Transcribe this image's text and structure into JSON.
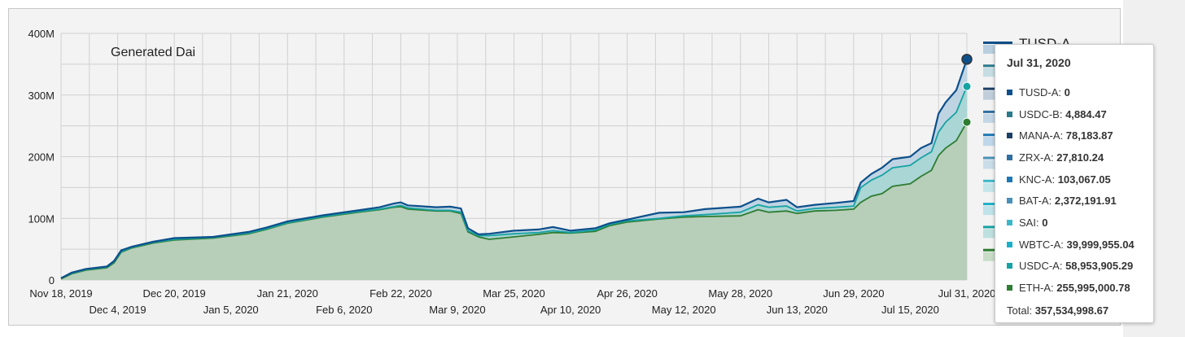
{
  "chart_data": {
    "type": "area",
    "title": "Generated Dai",
    "xlabel": "",
    "ylabel": "",
    "ylim": [
      0,
      400000000
    ],
    "y_ticks": [
      {
        "value": 0,
        "label": "0"
      },
      {
        "value": 100000000,
        "label": "100M"
      },
      {
        "value": 200000000,
        "label": "200M"
      },
      {
        "value": 300000000,
        "label": "300M"
      },
      {
        "value": 400000000,
        "label": "400M"
      }
    ],
    "x_ticks_upper": [
      {
        "date": "2019-11-18",
        "label": "Nov 18, 2019"
      },
      {
        "date": "2019-12-20",
        "label": "Dec 20, 2019"
      },
      {
        "date": "2020-01-21",
        "label": "Jan 21, 2020"
      },
      {
        "date": "2020-02-22",
        "label": "Feb 22, 2020"
      },
      {
        "date": "2020-03-25",
        "label": "Mar 25, 2020"
      },
      {
        "date": "2020-04-26",
        "label": "Apr 26, 2020"
      },
      {
        "date": "2020-05-28",
        "label": "May 28, 2020"
      },
      {
        "date": "2020-06-29",
        "label": "Jun 29, 2020"
      },
      {
        "date": "2020-07-31",
        "label": "Jul 31, 2020"
      }
    ],
    "x_ticks_lower": [
      {
        "date": "2019-12-04",
        "label": "Dec 4, 2019"
      },
      {
        "date": "2020-01-05",
        "label": "Jan 5, 2020"
      },
      {
        "date": "2020-02-06",
        "label": "Feb 6, 2020"
      },
      {
        "date": "2020-03-09",
        "label": "Mar 9, 2020"
      },
      {
        "date": "2020-04-10",
        "label": "Apr 10, 2020"
      },
      {
        "date": "2020-05-12",
        "label": "May 12, 2020"
      },
      {
        "date": "2020-06-13",
        "label": "Jun 13, 2020"
      },
      {
        "date": "2020-07-15",
        "label": "Jul 15, 2020"
      }
    ],
    "grid": true,
    "legend_position": "right",
    "legend_visible_entry": "TUSD-A",
    "series": [
      {
        "name": "ETH-A",
        "color": "#2e7d32",
        "points": [
          [
            "2019-11-18",
            2
          ],
          [
            "2019-11-21",
            10
          ],
          [
            "2019-11-25",
            16
          ],
          [
            "2019-12-01",
            20
          ],
          [
            "2019-12-03",
            28
          ],
          [
            "2019-12-05",
            45
          ],
          [
            "2019-12-08",
            52
          ],
          [
            "2019-12-14",
            60
          ],
          [
            "2019-12-20",
            65
          ],
          [
            "2019-12-31",
            68
          ],
          [
            "2020-01-10",
            75
          ],
          [
            "2020-01-15",
            82
          ],
          [
            "2020-01-21",
            92
          ],
          [
            "2020-01-31",
            102
          ],
          [
            "2020-02-10",
            110
          ],
          [
            "2020-02-16",
            114
          ],
          [
            "2020-02-20",
            118
          ],
          [
            "2020-02-22",
            119
          ],
          [
            "2020-02-24",
            115
          ],
          [
            "2020-03-03",
            112
          ],
          [
            "2020-03-07",
            112
          ],
          [
            "2020-03-10",
            108
          ],
          [
            "2020-03-12",
            78
          ],
          [
            "2020-03-15",
            70
          ],
          [
            "2020-03-18",
            66
          ],
          [
            "2020-03-25",
            70
          ],
          [
            "2020-04-01",
            74
          ],
          [
            "2020-04-05",
            77
          ],
          [
            "2020-04-10",
            76
          ],
          [
            "2020-04-17",
            79
          ],
          [
            "2020-04-21",
            88
          ],
          [
            "2020-04-26",
            94
          ],
          [
            "2020-05-05",
            99
          ],
          [
            "2020-05-12",
            102
          ],
          [
            "2020-05-18",
            103
          ],
          [
            "2020-05-28",
            104
          ],
          [
            "2020-06-02",
            114
          ],
          [
            "2020-06-05",
            110
          ],
          [
            "2020-06-10",
            112
          ],
          [
            "2020-06-13",
            108
          ],
          [
            "2020-06-18",
            112
          ],
          [
            "2020-06-24",
            113
          ],
          [
            "2020-06-29",
            115
          ],
          [
            "2020-07-01",
            126
          ],
          [
            "2020-07-04",
            136
          ],
          [
            "2020-07-07",
            140
          ],
          [
            "2020-07-10",
            152
          ],
          [
            "2020-07-15",
            156
          ],
          [
            "2020-07-18",
            168
          ],
          [
            "2020-07-21",
            178
          ],
          [
            "2020-07-23",
            202
          ],
          [
            "2020-07-25",
            214
          ],
          [
            "2020-07-28",
            226
          ],
          [
            "2020-07-31",
            256
          ]
        ]
      },
      {
        "name": "USDC-A",
        "color": "#16a3a3",
        "points": [
          [
            "2019-11-18",
            3
          ],
          [
            "2019-11-21",
            11
          ],
          [
            "2019-11-25",
            17
          ],
          [
            "2019-12-01",
            21
          ],
          [
            "2019-12-03",
            30
          ],
          [
            "2019-12-05",
            46
          ],
          [
            "2019-12-08",
            53
          ],
          [
            "2019-12-14",
            61
          ],
          [
            "2019-12-20",
            66
          ],
          [
            "2019-12-31",
            69
          ],
          [
            "2020-01-10",
            76
          ],
          [
            "2020-01-15",
            83
          ],
          [
            "2020-01-21",
            93
          ],
          [
            "2020-01-31",
            103
          ],
          [
            "2020-02-10",
            111
          ],
          [
            "2020-02-16",
            115
          ],
          [
            "2020-02-20",
            119
          ],
          [
            "2020-02-22",
            121
          ],
          [
            "2020-02-24",
            117
          ],
          [
            "2020-03-03",
            113
          ],
          [
            "2020-03-07",
            113
          ],
          [
            "2020-03-10",
            110
          ],
          [
            "2020-03-12",
            80
          ],
          [
            "2020-03-15",
            72
          ],
          [
            "2020-03-18",
            72
          ],
          [
            "2020-03-25",
            75
          ],
          [
            "2020-04-01",
            77
          ],
          [
            "2020-04-05",
            80
          ],
          [
            "2020-04-10",
            77
          ],
          [
            "2020-04-17",
            81
          ],
          [
            "2020-04-21",
            90
          ],
          [
            "2020-04-26",
            96
          ],
          [
            "2020-05-05",
            100
          ],
          [
            "2020-05-12",
            104
          ],
          [
            "2020-05-18",
            106
          ],
          [
            "2020-05-28",
            110
          ],
          [
            "2020-06-02",
            122
          ],
          [
            "2020-06-05",
            118
          ],
          [
            "2020-06-10",
            120
          ],
          [
            "2020-06-13",
            112
          ],
          [
            "2020-06-18",
            116
          ],
          [
            "2020-06-24",
            118
          ],
          [
            "2020-06-29",
            120
          ],
          [
            "2020-07-01",
            150
          ],
          [
            "2020-07-04",
            162
          ],
          [
            "2020-07-07",
            170
          ],
          [
            "2020-07-10",
            182
          ],
          [
            "2020-07-15",
            186
          ],
          [
            "2020-07-18",
            198
          ],
          [
            "2020-07-21",
            208
          ],
          [
            "2020-07-23",
            240
          ],
          [
            "2020-07-25",
            256
          ],
          [
            "2020-07-28",
            272
          ],
          [
            "2020-07-31",
            314
          ]
        ]
      },
      {
        "name": "TUSD-A",
        "color": "#0d4f8b",
        "points": [
          [
            "2019-11-18",
            3
          ],
          [
            "2019-11-21",
            12
          ],
          [
            "2019-11-25",
            18
          ],
          [
            "2019-12-01",
            22
          ],
          [
            "2019-12-03",
            31
          ],
          [
            "2019-12-05",
            48
          ],
          [
            "2019-12-08",
            54
          ],
          [
            "2019-12-14",
            62
          ],
          [
            "2019-12-20",
            68
          ],
          [
            "2019-12-31",
            70
          ],
          [
            "2020-01-10",
            78
          ],
          [
            "2020-01-15",
            85
          ],
          [
            "2020-01-21",
            95
          ],
          [
            "2020-01-31",
            105
          ],
          [
            "2020-02-10",
            113
          ],
          [
            "2020-02-16",
            118
          ],
          [
            "2020-02-20",
            124
          ],
          [
            "2020-02-22",
            126
          ],
          [
            "2020-02-24",
            121
          ],
          [
            "2020-03-03",
            118
          ],
          [
            "2020-03-07",
            119
          ],
          [
            "2020-03-10",
            116
          ],
          [
            "2020-03-12",
            84
          ],
          [
            "2020-03-15",
            74
          ],
          [
            "2020-03-18",
            75
          ],
          [
            "2020-03-25",
            80
          ],
          [
            "2020-04-01",
            82
          ],
          [
            "2020-04-05",
            86
          ],
          [
            "2020-04-10",
            80
          ],
          [
            "2020-04-17",
            84
          ],
          [
            "2020-04-21",
            92
          ],
          [
            "2020-04-26",
            98
          ],
          [
            "2020-05-05",
            109
          ],
          [
            "2020-05-12",
            110
          ],
          [
            "2020-05-18",
            115
          ],
          [
            "2020-05-28",
            119
          ],
          [
            "2020-06-02",
            132
          ],
          [
            "2020-06-05",
            126
          ],
          [
            "2020-06-10",
            130
          ],
          [
            "2020-06-13",
            118
          ],
          [
            "2020-06-18",
            122
          ],
          [
            "2020-06-24",
            125
          ],
          [
            "2020-06-29",
            128
          ],
          [
            "2020-07-01",
            158
          ],
          [
            "2020-07-04",
            172
          ],
          [
            "2020-07-07",
            182
          ],
          [
            "2020-07-10",
            196
          ],
          [
            "2020-07-15",
            200
          ],
          [
            "2020-07-18",
            214
          ],
          [
            "2020-07-21",
            222
          ],
          [
            "2020-07-23",
            270
          ],
          [
            "2020-07-25",
            288
          ],
          [
            "2020-07-28",
            308
          ],
          [
            "2020-07-31",
            358
          ]
        ]
      }
    ],
    "y_unit_multiplier": 1000000
  },
  "tooltip": {
    "date": "Jul 31, 2020",
    "rows": [
      {
        "label": "TUSD-A",
        "value": "0",
        "color": "#0d4f8b"
      },
      {
        "label": "USDC-B",
        "value": "4,884.47",
        "color": "#2a7a8c"
      },
      {
        "label": "MANA-A",
        "value": "78,183.87",
        "color": "#1b3f66"
      },
      {
        "label": "ZRX-A",
        "value": "27,810.24",
        "color": "#2e6ea0"
      },
      {
        "label": "KNC-A",
        "value": "103,067.05",
        "color": "#1f78b4"
      },
      {
        "label": "BAT-A",
        "value": "2,372,191.91",
        "color": "#4a90b8"
      },
      {
        "label": "SAI",
        "value": "0",
        "color": "#3ab8c8"
      },
      {
        "label": "WBTC-A",
        "value": "39,999,955.04",
        "color": "#1ab0c8"
      },
      {
        "label": "USDC-A",
        "value": "58,953,905.29",
        "color": "#16a3a3"
      },
      {
        "label": "ETH-A",
        "value": "255,995,000.78",
        "color": "#2e7d32"
      }
    ],
    "total_label": "Total",
    "total_value": "357,534,998.67"
  },
  "legend": {
    "entries": [
      {
        "name": "TUSD-A",
        "color": "#0d4f8b",
        "fill": "#b8cfe0"
      },
      {
        "color": "#2a7a8c",
        "fill": "#c5dde3"
      },
      {
        "color": "#1b3f66",
        "fill": "#c0cedb"
      },
      {
        "color": "#2e6ea0",
        "fill": "#c3d6e6"
      },
      {
        "color": "#1f78b4",
        "fill": "#bfd7ea"
      },
      {
        "color": "#4a90b8",
        "fill": "#c9dde9"
      },
      {
        "color": "#3ab8c8",
        "fill": "#c4e6ea"
      },
      {
        "color": "#1ab0c8",
        "fill": "#bfe3ea"
      },
      {
        "color": "#16a3a3",
        "fill": "#bde0df"
      },
      {
        "color": "#2e7d32",
        "fill": "#c8dcc8"
      }
    ]
  },
  "colors": {
    "eth_fill": "#b7cdb7",
    "usdc_fill": "#a9d6d4",
    "tusd_fill": "#bcd2e2",
    "grid": "#d0d0d0",
    "plot_bg": "#f3f3f3"
  }
}
